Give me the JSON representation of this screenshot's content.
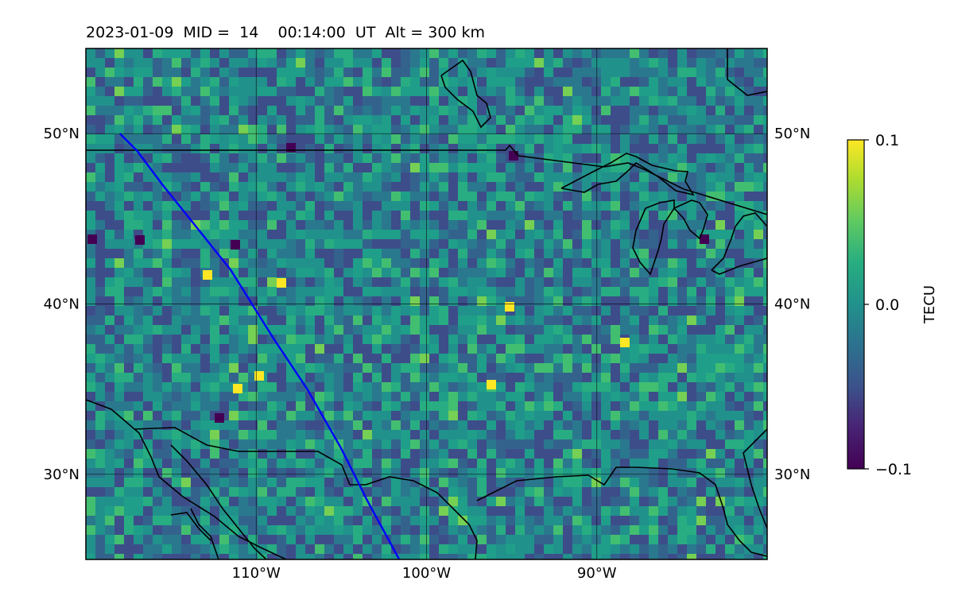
{
  "title": "2023-01-09  MID =  14    00:14:00  UT  Alt = 300 km",
  "map": {
    "lon_range": [
      -120,
      -80
    ],
    "lat_range": [
      25,
      55
    ],
    "lon_ticks": [
      {
        "value": -110,
        "label": "110°W"
      },
      {
        "value": -100,
        "label": "100°W"
      },
      {
        "value": -90,
        "label": "90°W"
      }
    ],
    "lat_ticks": [
      {
        "value": 50,
        "label": "50°N"
      },
      {
        "value": 40,
        "label": "40°N"
      },
      {
        "value": 30,
        "label": "30°N"
      }
    ],
    "grid": true,
    "field_description": "gridded TEC residual, mostly near 0.0 TECU with scattered negative (purple) and positive (yellow) cells",
    "track": {
      "color": "#0000ff",
      "points": [
        [
          -118.0,
          50.0
        ],
        [
          -117.0,
          49.0
        ],
        [
          -115.5,
          47.0
        ],
        [
          -113.5,
          44.5
        ],
        [
          -111.5,
          42.0
        ],
        [
          -109.0,
          38.0
        ],
        [
          -107.0,
          35.0
        ],
        [
          -105.0,
          31.5
        ],
        [
          -103.5,
          28.5
        ],
        [
          -101.6,
          25.0
        ]
      ]
    }
  },
  "colorbar": {
    "label": "TECU",
    "ticks": [
      {
        "value": 0.1,
        "label": "0.1"
      },
      {
        "value": 0.0,
        "label": "0.0"
      },
      {
        "value": -0.1,
        "label": "−0.1"
      }
    ],
    "range": [
      -0.1,
      0.1
    ],
    "colormap": "viridis"
  }
}
